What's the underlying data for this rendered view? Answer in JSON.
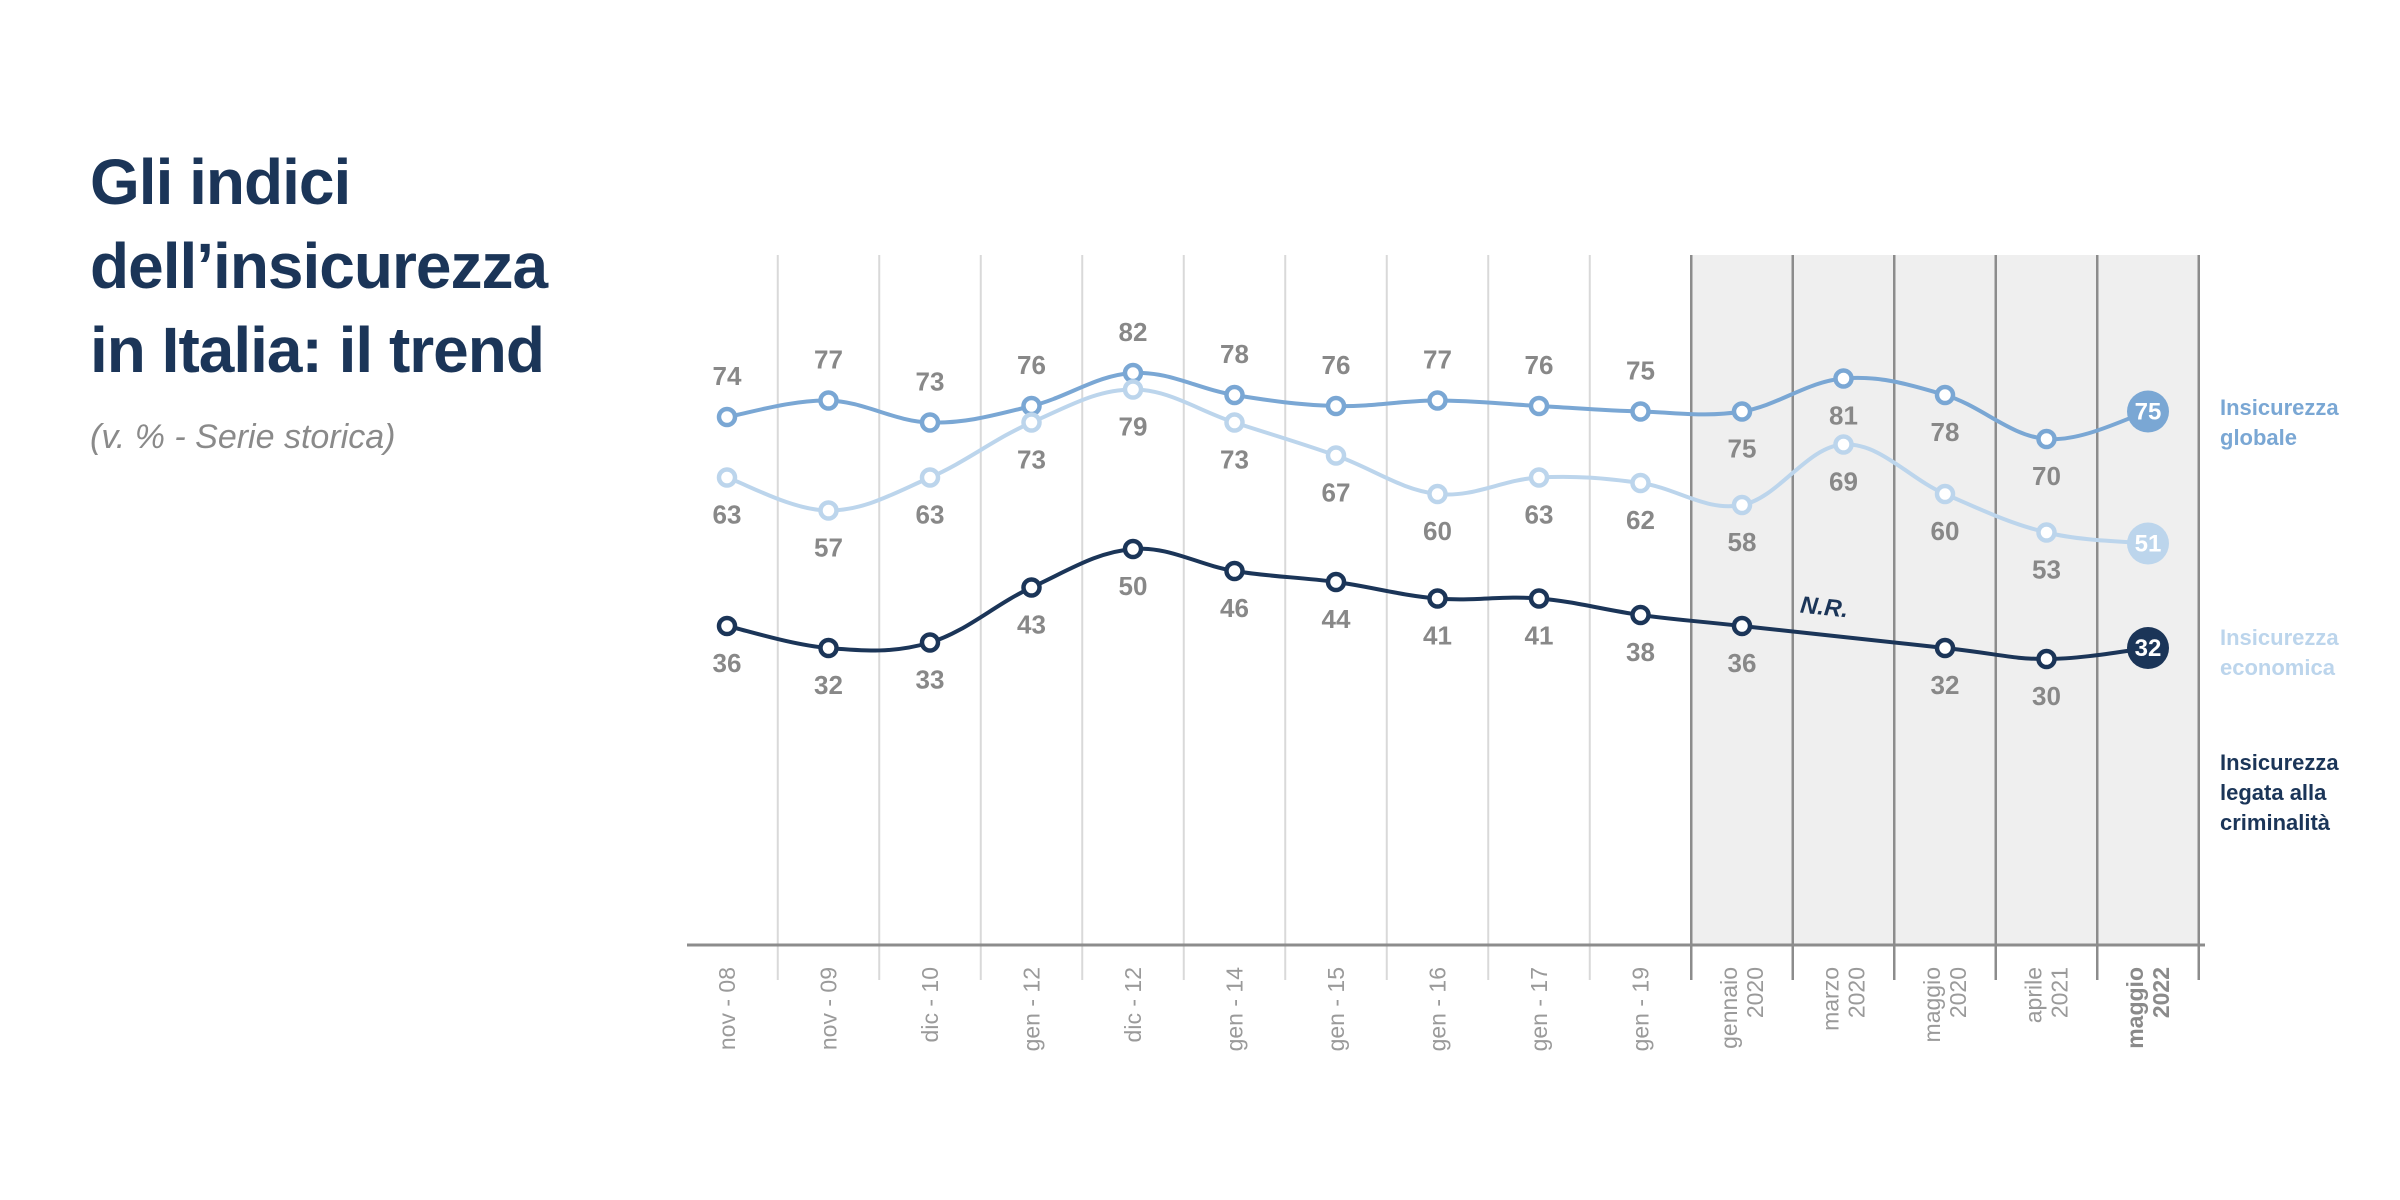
{
  "header": {
    "title_lines": [
      "Gli indici",
      "dell’insicurezza",
      "in Italia: il trend"
    ],
    "subtitle": "(v. % - Serie storica)"
  },
  "chart_data": {
    "type": "line",
    "categories": [
      [
        "nov - 08"
      ],
      [
        "nov - 09"
      ],
      [
        "dic - 10"
      ],
      [
        "gen - 12"
      ],
      [
        "dic - 12"
      ],
      [
        "gen - 14"
      ],
      [
        "gen - 15"
      ],
      [
        "gen - 16"
      ],
      [
        "gen - 17"
      ],
      [
        "gen - 19"
      ],
      [
        "gennaio",
        "2020"
      ],
      [
        "marzo",
        "2020"
      ],
      [
        "maggio",
        "2020"
      ],
      [
        "aprile",
        "2021"
      ],
      [
        "maggio",
        "2022"
      ]
    ],
    "highlight_from_index": 10,
    "emphasized_index": 14,
    "series": [
      {
        "name": "Insicurezza globale",
        "legend_lines": [
          "Insicurezza",
          "globale"
        ],
        "color": "#7aa7d4",
        "values": [
          74,
          77,
          73,
          76,
          82,
          78,
          76,
          77,
          76,
          75,
          75,
          81,
          78,
          70,
          75
        ],
        "label_pos": [
          "above",
          "above",
          "above",
          "above",
          "above",
          "above",
          "above",
          "above",
          "above",
          "above",
          "below",
          "below",
          "below",
          "below",
          "end"
        ]
      },
      {
        "name": "Insicurezza economica",
        "legend_lines": [
          "Insicurezza",
          "economica"
        ],
        "color": "#bcd5ec",
        "values": [
          63,
          57,
          63,
          73,
          79,
          73,
          67,
          60,
          63,
          62,
          58,
          69,
          60,
          53,
          51
        ],
        "label_pos": [
          "below",
          "below",
          "below",
          "below",
          "below",
          "below",
          "below",
          "below",
          "below",
          "below",
          "below",
          "below",
          "below",
          "below",
          "end"
        ]
      },
      {
        "name": "Insicurezza legata alla criminalità",
        "legend_lines": [
          "Insicurezza",
          "legata alla",
          "criminalità"
        ],
        "color": "#1b3558",
        "values": [
          36,
          32,
          33,
          43,
          50,
          46,
          44,
          41,
          41,
          38,
          36,
          null,
          32,
          30,
          32
        ],
        "label_pos": [
          "below",
          "below",
          "below",
          "below",
          "below",
          "below",
          "below",
          "below",
          "below",
          "below",
          "below",
          "none",
          "below",
          "below",
          "end"
        ]
      }
    ],
    "annotations": [
      {
        "text": "N.R.",
        "series": 2,
        "index": 11
      }
    ]
  }
}
